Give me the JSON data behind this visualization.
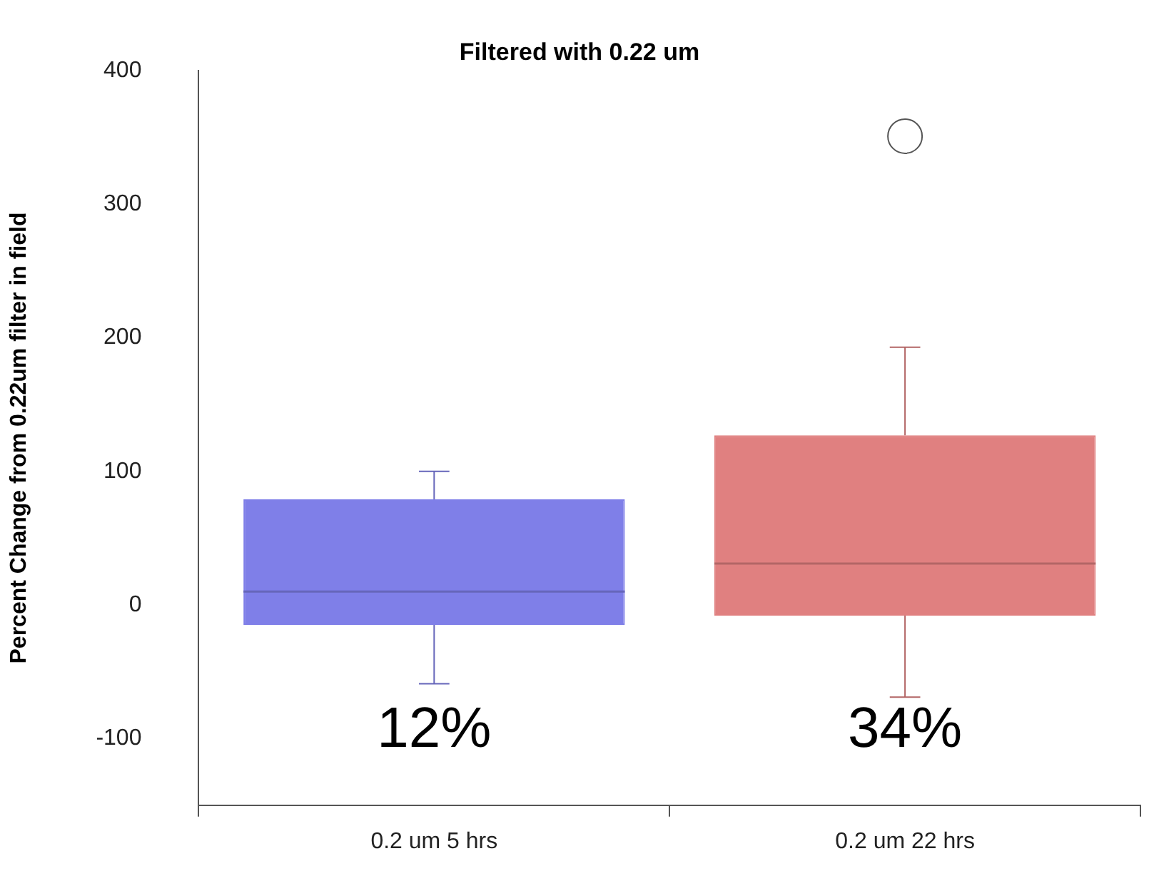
{
  "chart_data": {
    "type": "box",
    "title": "Filtered with 0.22 um",
    "ylabel": "Percent Change from 0.22um filter in field",
    "categories": [
      "0.2 um 5 hrs",
      "0.2 um 22 hrs"
    ],
    "boxes": [
      {
        "low": -59,
        "q1": -15,
        "median": 10,
        "q3": 79,
        "high": 100
      },
      {
        "low": -69,
        "q1": -8,
        "median": 31,
        "q3": 127,
        "high": 193,
        "outliers": [
          351
        ]
      }
    ],
    "colors": [
      "#7f7fe8",
      "#e08080"
    ],
    "ylim": [
      -150,
      400
    ],
    "yticks": [
      -100,
      0,
      100,
      200,
      300,
      400
    ],
    "grid": false,
    "annotations": [
      "12%",
      "34%"
    ]
  }
}
